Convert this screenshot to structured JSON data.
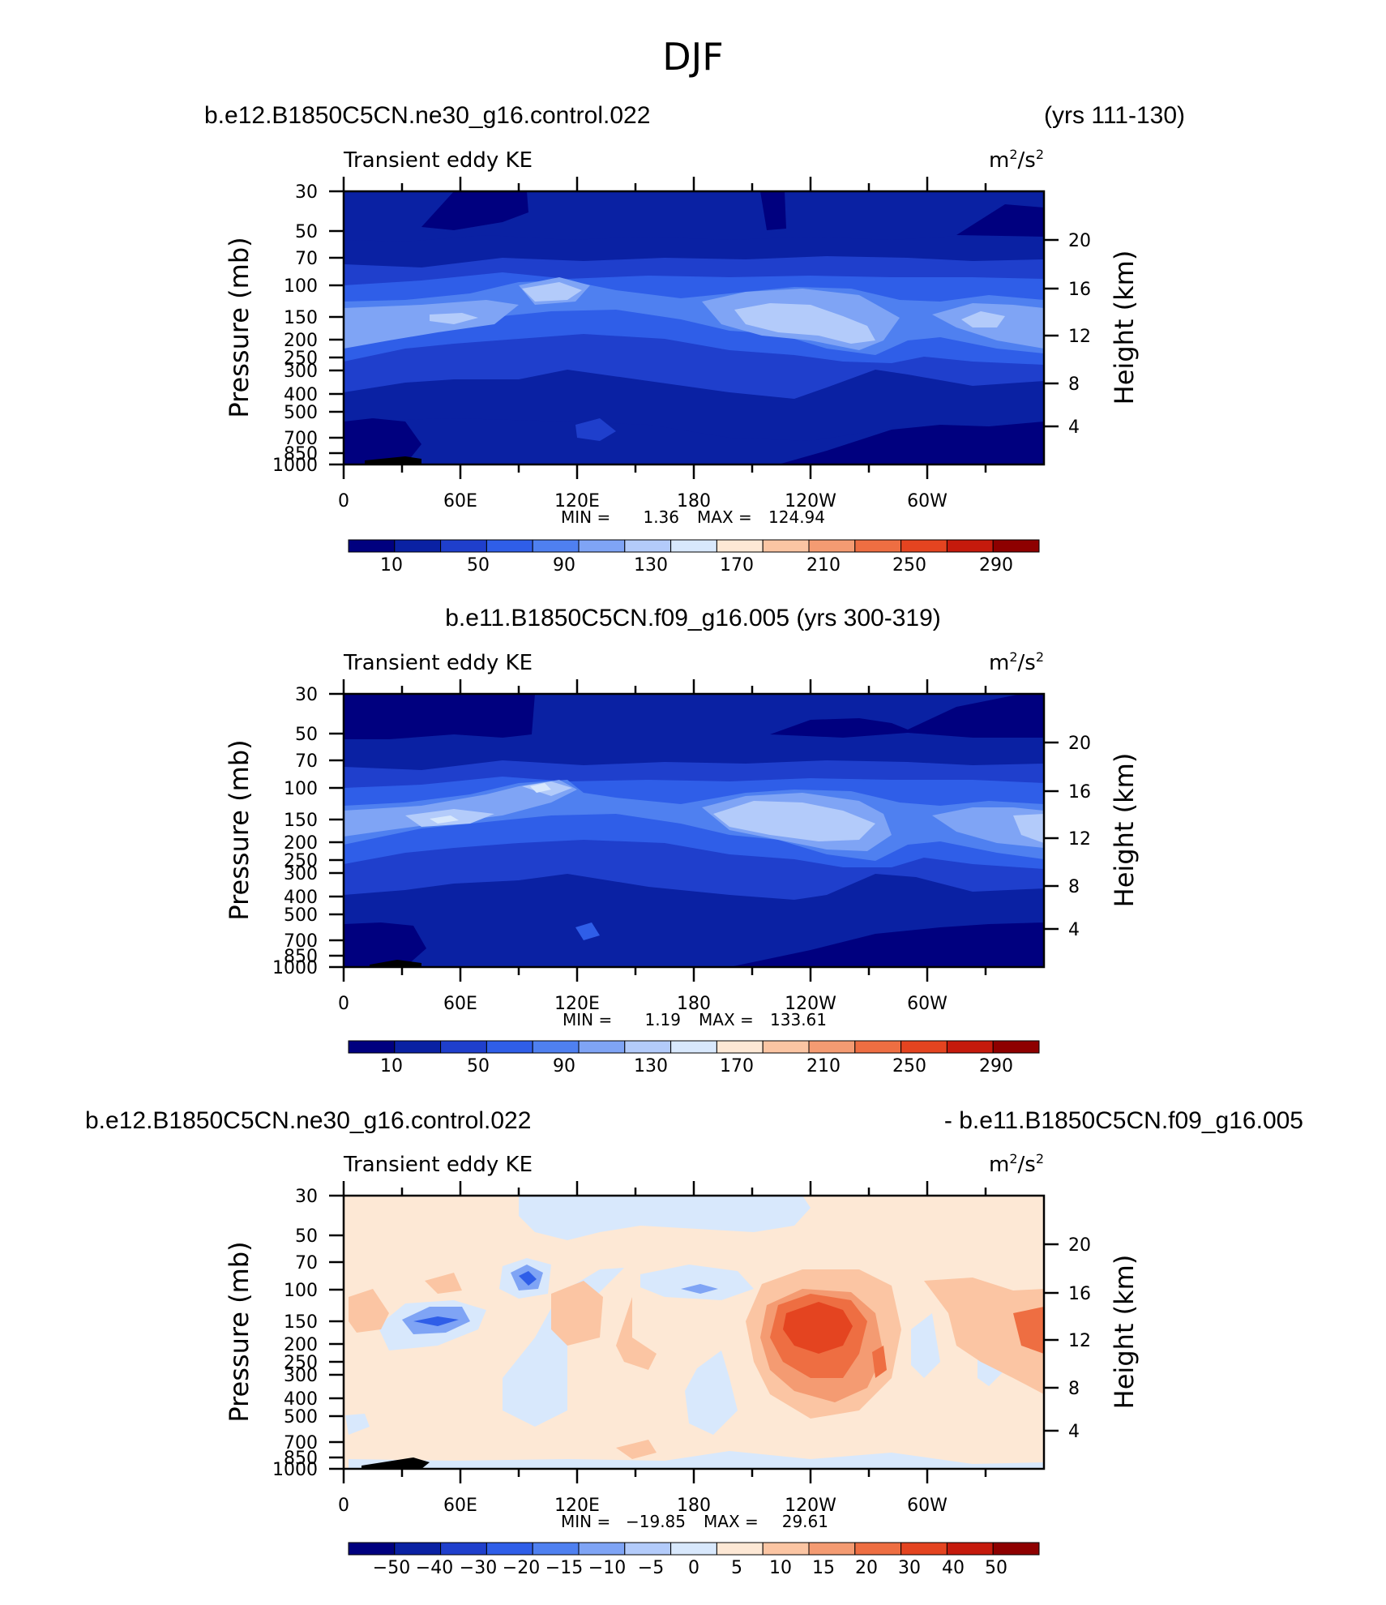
{
  "page_title": "DJF",
  "colors": {
    "abs_scale": [
      "#00007f",
      "#0a21a3",
      "#1f3fcc",
      "#2f5ee8",
      "#4f80f0",
      "#7fa4f5",
      "#b3cbfa",
      "#d8e8fc",
      "#fde8d5",
      "#fbc5a3",
      "#f49b72",
      "#ee6e42",
      "#e44420",
      "#c51a0c",
      "#8e0000"
    ],
    "diff_scale": [
      "#00007f",
      "#0a21a3",
      "#1f3fcc",
      "#2f5ee8",
      "#4f80f0",
      "#7fa4f5",
      "#b3cbfa",
      "#d8e8fc",
      "#fde8d5",
      "#fbc5a3",
      "#f49b72",
      "#ee6e42",
      "#e44420",
      "#c51a0c",
      "#8e0000"
    ]
  },
  "chart_data": [
    {
      "type": "heatmap",
      "panel_title_left": "b.e12.B1850C5CN.ne30_g16.control.022",
      "panel_title_right": "(yrs 111-130)",
      "variable": "Transient eddy KE",
      "units_base": "m",
      "units_exp1": "2",
      "units_sep": "/s",
      "units_exp2": "2",
      "ylabel": "Pressure  (mb)",
      "ylabel_right": "Height  (km)",
      "x_ticks": [
        "0",
        "60E",
        "120E",
        "180",
        "120W",
        "60W"
      ],
      "y_ticks": [
        "30",
        "50",
        "70",
        "100",
        "150",
        "200",
        "250",
        "300",
        "400",
        "500",
        "700",
        "850",
        "1000"
      ],
      "y_ticks_right": [
        "20",
        "16",
        "12",
        "8",
        "4"
      ],
      "min_label": "MIN =",
      "min_value": "1.36",
      "max_label": "MAX =",
      "max_value": "124.94",
      "min": 1.36,
      "max": 124.94,
      "colorbar_labels": [
        "10",
        "50",
        "90",
        "130",
        "170",
        "210",
        "250",
        "290"
      ],
      "contour_levels": [
        10,
        20,
        30,
        40,
        50,
        60,
        70,
        80,
        90,
        100,
        110,
        120,
        130,
        140,
        150,
        160,
        170,
        180,
        190,
        200,
        210,
        220,
        230,
        240,
        250,
        260,
        270,
        280,
        290
      ]
    },
    {
      "type": "heatmap",
      "panel_title": "b.e11.B1850C5CN.f09_g16.005 (yrs 300-319)",
      "variable": "Transient eddy KE",
      "units_base": "m",
      "units_exp1": "2",
      "units_sep": "/s",
      "units_exp2": "2",
      "ylabel": "Pressure  (mb)",
      "ylabel_right": "Height  (km)",
      "x_ticks": [
        "0",
        "60E",
        "120E",
        "180",
        "120W",
        "60W"
      ],
      "y_ticks": [
        "30",
        "50",
        "70",
        "100",
        "150",
        "200",
        "250",
        "300",
        "400",
        "500",
        "700",
        "850",
        "1000"
      ],
      "y_ticks_right": [
        "20",
        "16",
        "12",
        "8",
        "4"
      ],
      "min_label": "MIN =",
      "min_value": "1.19",
      "max_label": "MAX =",
      "max_value": "133.61",
      "min": 1.19,
      "max": 133.61,
      "colorbar_labels": [
        "10",
        "50",
        "90",
        "130",
        "170",
        "210",
        "250",
        "290"
      ],
      "contour_levels": [
        10,
        20,
        30,
        40,
        50,
        60,
        70,
        80,
        90,
        100,
        110,
        120,
        130,
        140,
        150,
        160,
        170,
        180,
        190,
        200,
        210,
        220,
        230,
        240,
        250,
        260,
        270,
        280,
        290
      ]
    },
    {
      "type": "heatmap",
      "panel_title_left": "b.e12.B1850C5CN.ne30_g16.control.022",
      "panel_title_right": "- b.e11.B1850C5CN.f09_g16.005",
      "variable": "Transient eddy KE",
      "units_base": "m",
      "units_exp1": "2",
      "units_sep": "/s",
      "units_exp2": "2",
      "ylabel": "Pressure  (mb)",
      "ylabel_right": "Height  (km)",
      "x_ticks": [
        "0",
        "60E",
        "120E",
        "180",
        "120W",
        "60W"
      ],
      "y_ticks": [
        "30",
        "50",
        "70",
        "100",
        "150",
        "200",
        "250",
        "300",
        "400",
        "500",
        "700",
        "850",
        "1000"
      ],
      "y_ticks_right": [
        "20",
        "16",
        "12",
        "8",
        "4"
      ],
      "min_label": "MIN =",
      "min_value": "−19.85",
      "max_label": "MAX =",
      "max_value": "29.61",
      "min": -19.85,
      "max": 29.61,
      "colorbar_labels": [
        "−50",
        "−40",
        "−30",
        "−20",
        "−15",
        "−10",
        "−5",
        "0",
        "5",
        "10",
        "15",
        "20",
        "30",
        "40",
        "50"
      ],
      "contour_levels": [
        -50,
        -40,
        -30,
        -20,
        -15,
        -10,
        -5,
        0,
        5,
        10,
        15,
        20,
        30,
        40,
        50
      ]
    }
  ]
}
